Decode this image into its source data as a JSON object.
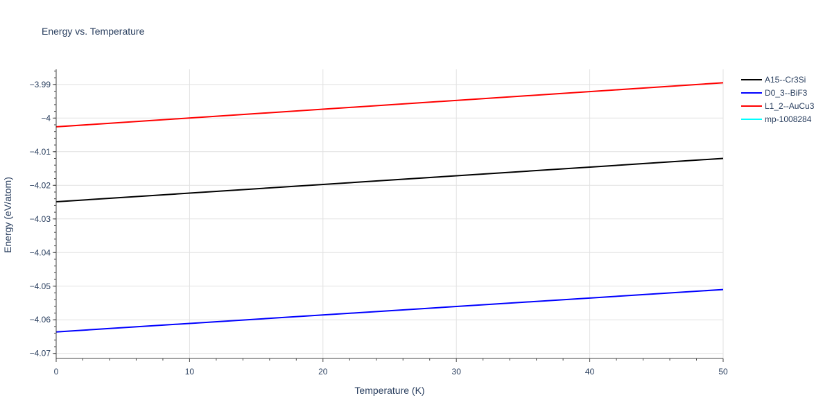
{
  "chart_data": {
    "type": "line",
    "title": "Energy vs. Temperature",
    "xlabel": "Temperature (K)",
    "ylabel": "Energy (eV/atom)",
    "xlim": [
      0,
      50
    ],
    "ylim": [
      -4.0715,
      -3.9855
    ],
    "x_ticks": [
      0,
      10,
      20,
      30,
      40,
      50
    ],
    "x_tick_labels": [
      "0",
      "10",
      "20",
      "30",
      "40",
      "50"
    ],
    "y_ticks": [
      -3.99,
      -4.0,
      -4.01,
      -4.02,
      -4.03,
      -4.04,
      -4.05,
      -4.06,
      -4.07
    ],
    "y_tick_labels": [
      "−3.99",
      "−4",
      "−4.01",
      "−4.02",
      "−4.03",
      "−4.04",
      "−4.05",
      "−4.06",
      "−4.07"
    ],
    "grid": true,
    "legend_position": "top-right",
    "series": [
      {
        "name": "A15--Cr3Si",
        "color": "#000000",
        "x": [
          0,
          50
        ],
        "y": [
          -4.0249,
          -4.012
        ]
      },
      {
        "name": "D0_3--BiF3",
        "color": "#0000ff",
        "x": [
          0,
          50
        ],
        "y": [
          -4.0636,
          -4.051
        ]
      },
      {
        "name": "L1_2--AuCu3",
        "color": "#ff0000",
        "x": [
          0,
          50
        ],
        "y": [
          -4.0026,
          -3.9895
        ]
      },
      {
        "name": "mp-1008284",
        "color": "#00ffff",
        "x": [],
        "y": []
      }
    ]
  }
}
